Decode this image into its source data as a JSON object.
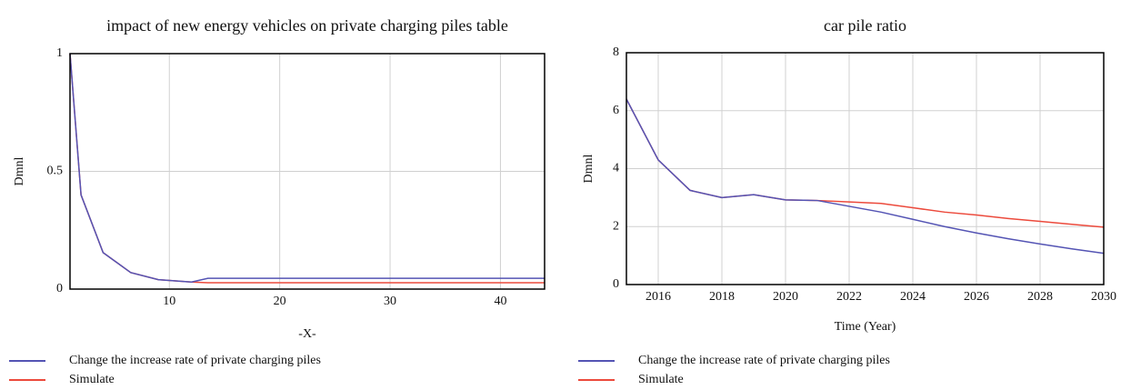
{
  "chart_data": [
    {
      "type": "line",
      "title": "impact of new energy vehicles on private charging piles table",
      "x_label": "-X-",
      "y_label": "Dmnl",
      "x": [
        1,
        2,
        4,
        6.5,
        9,
        12,
        13.5,
        44
      ],
      "series": [
        {
          "name": "Change the increase rate of private charging piles",
          "color": "#5454b4",
          "values": [
            1,
            0.4,
            0.155,
            0.07,
            0.04,
            0.03,
            0.046,
            0.046
          ]
        },
        {
          "name": "Simulate",
          "color": "#ec4a3c",
          "values": [
            1,
            0.4,
            0.155,
            0.07,
            0.04,
            0.03,
            0.027,
            0.027
          ]
        }
      ],
      "xlim": [
        1,
        44
      ],
      "xticks": [
        10,
        20,
        30,
        40
      ],
      "ylim": [
        0,
        1
      ],
      "yticks": [
        0,
        0.5,
        1
      ],
      "grid": true
    },
    {
      "type": "line",
      "title": "car pile ratio",
      "x_label": "Time (Year)",
      "y_label": "Dmnl",
      "x": [
        2015,
        2016,
        2017,
        2018,
        2019,
        2020,
        2021,
        2022,
        2023,
        2024,
        2025,
        2026,
        2027,
        2028,
        2029,
        2030
      ],
      "series": [
        {
          "name": "Change the increase rate of private charging piles",
          "color": "#5454b4",
          "values": [
            6.4,
            4.3,
            3.25,
            3.0,
            3.1,
            2.92,
            2.9,
            2.7,
            2.5,
            2.25,
            2.0,
            1.78,
            1.58,
            1.4,
            1.23,
            1.08
          ]
        },
        {
          "name": "Simulate",
          "color": "#ec4a3c",
          "values": [
            6.4,
            4.3,
            3.25,
            3.0,
            3.1,
            2.92,
            2.9,
            2.85,
            2.8,
            2.65,
            2.5,
            2.4,
            2.28,
            2.18,
            2.08,
            1.98
          ]
        }
      ],
      "xlim": [
        2015,
        2030
      ],
      "xticks": [
        2016,
        2018,
        2020,
        2022,
        2024,
        2026,
        2028,
        2030
      ],
      "ylim": [
        0,
        8
      ],
      "yticks": [
        0,
        2,
        4,
        6,
        8
      ],
      "grid": true
    }
  ]
}
